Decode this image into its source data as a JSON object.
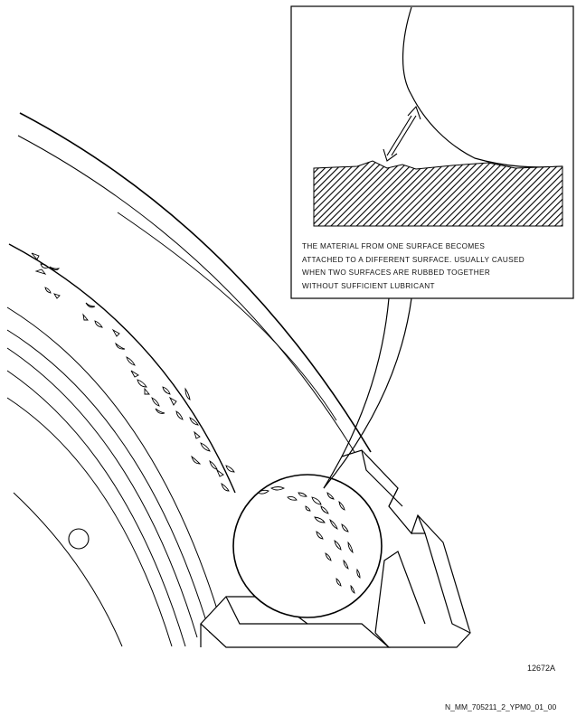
{
  "callout": {
    "lines": [
      "THE MATERIAL FROM ONE SURFACE BECOMES",
      "ATTACHED TO A DIFFERENT SURFACE. USUALLY CAUSED",
      "WHEN TWO SURFACES ARE RUBBED TOGETHER",
      "WITHOUT SUFFICIENT LUBRICANT"
    ]
  },
  "figure_number": "12672A",
  "document_id": "N_MM_705211_2_YPM0_01_00"
}
